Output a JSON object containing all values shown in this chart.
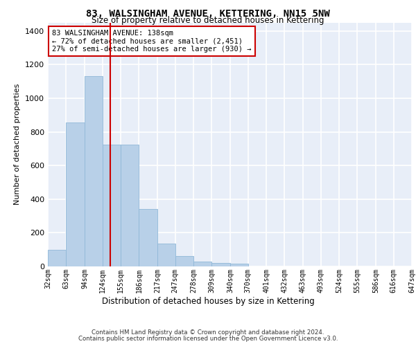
{
  "title": "83, WALSINGHAM AVENUE, KETTERING, NN15 5NW",
  "subtitle": "Size of property relative to detached houses in Kettering",
  "xlabel": "Distribution of detached houses by size in Kettering",
  "ylabel": "Number of detached properties",
  "bar_color": "#b8d0e8",
  "bar_edge_color": "#90b8d8",
  "background_color": "#e8eef8",
  "grid_color": "#ffffff",
  "vline_color": "#cc0000",
  "annotation_text": "83 WALSINGHAM AVENUE: 138sqm\n← 72% of detached houses are smaller (2,451)\n27% of semi-detached houses are larger (930) →",
  "annotation_box_color": "#ffffff",
  "annotation_box_edge": "#cc0000",
  "bin_edges": [
    32,
    63,
    94,
    124,
    155,
    186,
    217,
    247,
    278,
    309,
    340,
    370,
    401,
    432,
    463,
    493,
    524,
    555,
    586,
    616,
    647
  ],
  "bin_labels": [
    "32sqm",
    "63sqm",
    "94sqm",
    "124sqm",
    "155sqm",
    "186sqm",
    "217sqm",
    "247sqm",
    "278sqm",
    "309sqm",
    "340sqm",
    "370sqm",
    "401sqm",
    "432sqm",
    "463sqm",
    "493sqm",
    "524sqm",
    "555sqm",
    "586sqm",
    "616sqm",
    "647sqm"
  ],
  "counts": [
    100,
    855,
    1130,
    725,
    725,
    340,
    135,
    60,
    30,
    20,
    15,
    0,
    0,
    0,
    0,
    0,
    0,
    0,
    0,
    0
  ],
  "vline_x": 138,
  "ylim": [
    0,
    1450
  ],
  "yticks": [
    0,
    200,
    400,
    600,
    800,
    1000,
    1200,
    1400
  ],
  "footer_line1": "Contains HM Land Registry data © Crown copyright and database right 2024.",
  "footer_line2": "Contains public sector information licensed under the Open Government Licence v3.0."
}
